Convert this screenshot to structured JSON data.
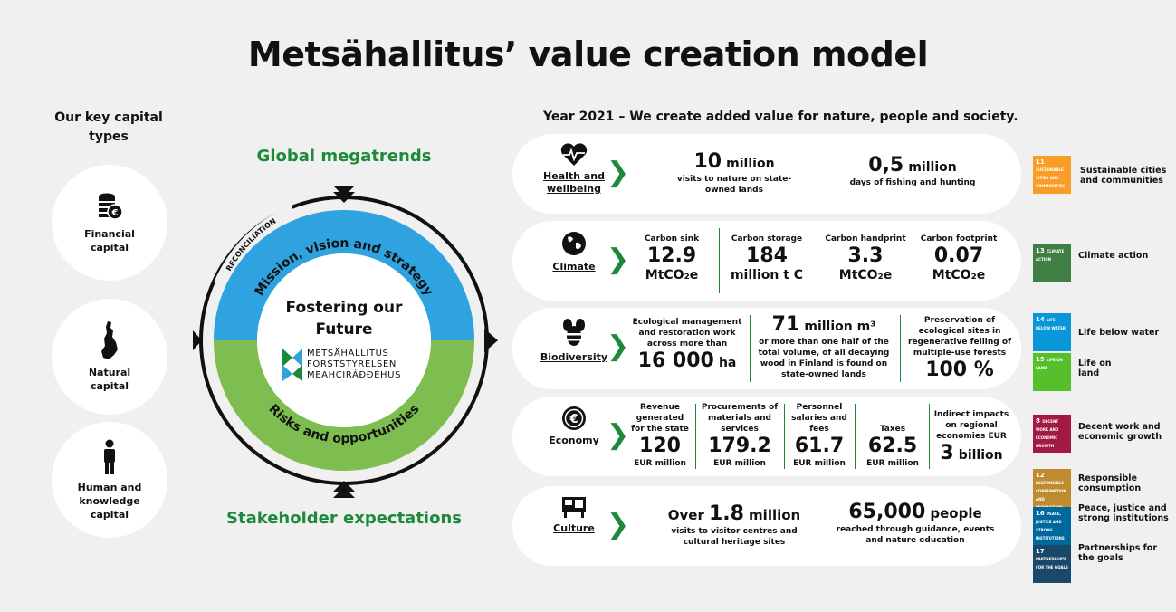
{
  "title": "Metsähallitus’ value creation model",
  "capitals": {
    "heading": "Our key capital types",
    "items": [
      {
        "label": "Financial capital"
      },
      {
        "label": "Natural capital"
      },
      {
        "label": "Human and knowledge capital"
      }
    ]
  },
  "center": {
    "top": "Global megatrends",
    "bottom": "Stakeholder expectations",
    "reconciliation": "RECONCILIATION",
    "ring_top": "Mission, vision and strategy",
    "ring_bottom": "Risks and opportunities",
    "core": "Fostering our Future",
    "logo_lines": [
      "METSÄHALLITUS",
      "FORSTSTYRELSEN",
      "MEAHCIRÁÐÐEHUS"
    ]
  },
  "year_line": "Year 2021 – We create added value for nature, people and society.",
  "rows": {
    "health": {
      "label": "Health and wellbeing",
      "m1_big": "10",
      "m1_unit": "million",
      "m1_desc": "visits to nature on state-owned lands",
      "m2_big": "0,5",
      "m2_unit": "million",
      "m2_desc": "days of fishing and hunting"
    },
    "climate": {
      "label": "Climate",
      "items": [
        {
          "head": "Carbon sink",
          "big": "12.9",
          "unit": "MtCO₂e"
        },
        {
          "head": "Carbon storage",
          "big": "184",
          "unit": "million t C"
        },
        {
          "head": "Carbon handprint",
          "big": "3.3",
          "unit": "MtCO₂e"
        },
        {
          "head": "Carbon footprint",
          "big": "0.07",
          "unit": "MtCO₂e"
        }
      ]
    },
    "biodiversity": {
      "label": "Biodiversity",
      "m1_desc": "Ecological management and restoration work across more than",
      "m1_big": "16 000",
      "m1_unit": "ha",
      "m2_big": "71",
      "m2_unit": "million m³",
      "m2_desc": "or more than one half of the total volume, of all decaying wood in Finland is found on state-owned lands",
      "m3_desc": "Preservation of ecological sites in regenerative felling of multiple-use forests",
      "m3_big": "100 %"
    },
    "economy": {
      "label": "Economy",
      "items": [
        {
          "head": "Revenue generated for the state",
          "big": "120",
          "unit": "EUR million"
        },
        {
          "head": "Procurements of materials and services",
          "big": "179.2",
          "unit": "EUR million"
        },
        {
          "head": "Personnel salaries and fees",
          "big": "61.7",
          "unit": "EUR million"
        },
        {
          "head": "Taxes",
          "big": "62.5",
          "unit": "EUR million"
        },
        {
          "head": "Indirect impacts on regional economies EUR",
          "big": "3",
          "unit": "billion"
        }
      ]
    },
    "culture": {
      "label": "Culture",
      "m1_pre": "Over",
      "m1_big": "1.8",
      "m1_unit": "million",
      "m1_desc": "visits to visitor centres and cultural heritage sites",
      "m2_big": "65,000",
      "m2_unit": "people",
      "m2_desc": "reached through guidance, events and nature education"
    }
  },
  "sdgs": [
    {
      "num": "11",
      "short": "SUSTAINABLE CITIES AND COMMUNITIES",
      "label": "Sustainable cities and communities",
      "color": "#f99d26"
    },
    {
      "num": "13",
      "short": "CLIMATE ACTION",
      "label": "Climate action",
      "color": "#3f7e44"
    },
    {
      "num": "14",
      "short": "LIFE BELOW WATER",
      "label": "Life below water",
      "color": "#0a97d9"
    },
    {
      "num": "15",
      "short": "LIFE ON LAND",
      "label": "Life on land",
      "color": "#56c02b"
    },
    {
      "num": "8",
      "short": "DECENT WORK AND ECONOMIC GROWTH",
      "label": "Decent work and economic growth",
      "color": "#a21942"
    },
    {
      "num": "12",
      "short": "RESPONSIBLE CONSUMPTION AND PRODUCTION",
      "label": "Responsible consumption",
      "color": "#bf8b2e"
    },
    {
      "num": "16",
      "short": "PEACE, JUSTICE AND STRONG INSTITUTIONS",
      "label": "Peace, justice and strong institutions",
      "color": "#00689d"
    },
    {
      "num": "17",
      "short": "PARTNERSHIPS FOR THE GOALS",
      "label": "Partnerships for the goals",
      "color": "#19486a"
    }
  ],
  "colors": {
    "green": "#1d8a3a",
    "blue": "#2ea3df",
    "light_green": "#7ebd4f"
  }
}
